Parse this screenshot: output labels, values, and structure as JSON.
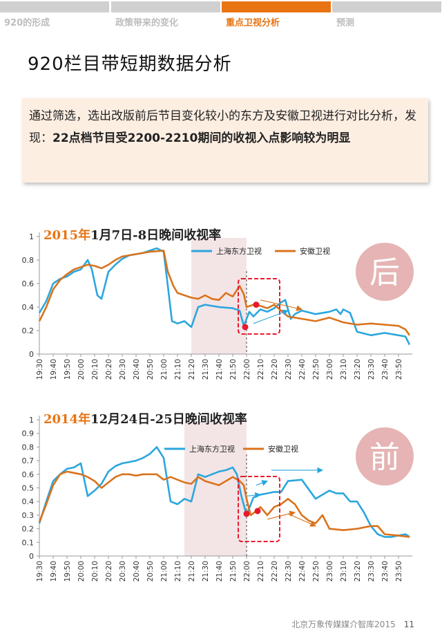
{
  "nav": {
    "tabs": [
      {
        "label": "920的形成",
        "active": false
      },
      {
        "label": "政策带来的变化",
        "active": false
      },
      {
        "label": "重点卫视分析",
        "active": true
      },
      {
        "label": "预测",
        "active": false
      }
    ]
  },
  "page_title": "920栏目带短期数据分析",
  "note": {
    "lead": "通过筛选，选出改版前后节目变化较小的东方及安徽卫视进行对比分析，发现：",
    "bold": "22点档节目受2200-2210期间的收视入点影响较为明显"
  },
  "footer": {
    "source": "北京万象传媒媒介智库2015",
    "page": "11"
  },
  "colors": {
    "shanghai": "#2aa6de",
    "anhui": "#d9731c",
    "highlight": "#e8192c",
    "shade": "#f3e4e6",
    "badge": "#e6b4b4",
    "title_accent": "#e87413"
  },
  "chart_data": [
    {
      "type": "line",
      "title_accent": "2015年",
      "title": "1月7日-8日晚间收视率",
      "badge": "后",
      "ylim": [
        0,
        1
      ],
      "yticks": [
        "0",
        "0.2",
        "0.4",
        "0.6",
        "0.8",
        "1"
      ],
      "xticks": [
        "19:30",
        "19:40",
        "19:50",
        "20:00",
        "20:10",
        "20:20",
        "20:30",
        "20:40",
        "20:50",
        "21:00",
        "21:10",
        "21:20",
        "21:30",
        "21:40",
        "21:50",
        "22:00",
        "22:10",
        "22:20",
        "22:30",
        "22:40",
        "22:50",
        "23:00",
        "23:10",
        "23:20",
        "23:30",
        "23:40",
        "23:50"
      ],
      "shaded_range": [
        "21:20",
        "22:00"
      ],
      "series": [
        {
          "name": "上海东方卫视",
          "x": [
            "19:30",
            "19:35",
            "19:40",
            "19:45",
            "19:50",
            "19:55",
            "20:00",
            "20:05",
            "20:08",
            "20:12",
            "20:15",
            "20:20",
            "20:25",
            "20:30",
            "20:35",
            "20:40",
            "20:45",
            "20:50",
            "20:55",
            "21:00",
            "21:03",
            "21:06",
            "21:10",
            "21:15",
            "21:20",
            "21:25",
            "21:30",
            "21:40",
            "21:50",
            "21:55",
            "21:58",
            "22:02",
            "22:05",
            "22:10",
            "22:15",
            "22:20",
            "22:25",
            "22:28",
            "22:32",
            "22:35",
            "22:40",
            "22:50",
            "23:00",
            "23:05",
            "23:08",
            "23:10",
            "23:15",
            "23:20",
            "23:30",
            "23:40",
            "23:50",
            "23:55",
            "23:58"
          ],
          "values": [
            0.35,
            0.45,
            0.6,
            0.64,
            0.66,
            0.7,
            0.72,
            0.8,
            0.72,
            0.5,
            0.47,
            0.7,
            0.76,
            0.81,
            0.84,
            0.85,
            0.86,
            0.88,
            0.9,
            0.87,
            0.58,
            0.28,
            0.26,
            0.28,
            0.23,
            0.4,
            0.42,
            0.4,
            0.39,
            0.37,
            0.24,
            0.36,
            0.32,
            0.38,
            0.36,
            0.39,
            0.44,
            0.46,
            0.3,
            0.34,
            0.37,
            0.34,
            0.36,
            0.38,
            0.34,
            0.38,
            0.35,
            0.19,
            0.16,
            0.18,
            0.16,
            0.15,
            0.08
          ]
        },
        {
          "name": "安徽卫视",
          "x": [
            "19:30",
            "19:35",
            "19:40",
            "19:45",
            "19:50",
            "19:55",
            "20:00",
            "20:05",
            "20:10",
            "20:15",
            "20:20",
            "20:25",
            "20:30",
            "20:40",
            "20:50",
            "21:00",
            "21:03",
            "21:07",
            "21:10",
            "21:15",
            "21:20",
            "21:25",
            "21:30",
            "21:35",
            "21:40",
            "21:45",
            "21:50",
            "21:55",
            "21:58",
            "22:00",
            "22:05",
            "22:10",
            "22:15",
            "22:20",
            "22:30",
            "22:40",
            "22:50",
            "23:00",
            "23:10",
            "23:20",
            "23:30",
            "23:40",
            "23:50",
            "23:55",
            "23:58"
          ],
          "values": [
            0.28,
            0.4,
            0.55,
            0.63,
            0.68,
            0.72,
            0.74,
            0.76,
            0.75,
            0.73,
            0.76,
            0.8,
            0.83,
            0.85,
            0.87,
            0.88,
            0.7,
            0.58,
            0.52,
            0.5,
            0.48,
            0.47,
            0.5,
            0.47,
            0.46,
            0.52,
            0.49,
            0.58,
            0.51,
            0.4,
            0.42,
            0.41,
            0.39,
            0.42,
            0.32,
            0.3,
            0.28,
            0.31,
            0.27,
            0.25,
            0.26,
            0.25,
            0.24,
            0.21,
            0.16
          ]
        }
      ],
      "markers": [
        {
          "time": "21:59",
          "value": 0.23
        },
        {
          "time": "22:07",
          "value": 0.42
        }
      ]
    },
    {
      "type": "line",
      "title_accent": "2014年",
      "title": "12月24日-25日晚间收视率",
      "badge": "前",
      "ylim": [
        0,
        1
      ],
      "yticks": [
        "0",
        "0.1",
        "0.2",
        "0.3",
        "0.4",
        "0.5",
        "0.6",
        "0.7",
        "0.8",
        "0.9",
        "1"
      ],
      "xticks": [
        "19:30",
        "19:40",
        "19:50",
        "20:00",
        "20:10",
        "20:20",
        "20:30",
        "20:40",
        "20:50",
        "21:00",
        "21:10",
        "21:20",
        "21:30",
        "21:40",
        "21:50",
        "22:00",
        "22:10",
        "22:20",
        "22:30",
        "22:40",
        "22:50",
        "23:00",
        "23:10",
        "23:20",
        "23:30",
        "23:40",
        "23:50"
      ],
      "shaded_range": [
        "21:15",
        "22:00"
      ],
      "series": [
        {
          "name": "上海东方卫视",
          "x": [
            "19:30",
            "19:35",
            "19:40",
            "19:45",
            "19:50",
            "19:55",
            "20:00",
            "20:05",
            "20:10",
            "20:15",
            "20:20",
            "20:25",
            "20:30",
            "20:35",
            "20:40",
            "20:45",
            "20:50",
            "20:55",
            "21:00",
            "21:05",
            "21:10",
            "21:15",
            "21:20",
            "21:25",
            "21:30",
            "21:35",
            "21:40",
            "21:45",
            "21:50",
            "21:53",
            "21:56",
            "22:00",
            "22:05",
            "22:10",
            "22:15",
            "22:20",
            "22:25",
            "22:30",
            "22:40",
            "22:50",
            "23:00",
            "23:05",
            "23:10",
            "23:15",
            "23:20",
            "23:25",
            "23:30",
            "23:35",
            "23:40",
            "23:45",
            "23:50",
            "23:55",
            "23:58"
          ],
          "values": [
            0.24,
            0.4,
            0.55,
            0.6,
            0.64,
            0.65,
            0.68,
            0.44,
            0.48,
            0.53,
            0.62,
            0.66,
            0.68,
            0.69,
            0.7,
            0.72,
            0.75,
            0.8,
            0.72,
            0.4,
            0.38,
            0.42,
            0.4,
            0.6,
            0.58,
            0.6,
            0.62,
            0.63,
            0.65,
            0.6,
            0.45,
            0.3,
            0.43,
            0.45,
            0.46,
            0.47,
            0.47,
            0.55,
            0.56,
            0.42,
            0.48,
            0.46,
            0.46,
            0.4,
            0.4,
            0.32,
            0.22,
            0.16,
            0.14,
            0.14,
            0.15,
            0.16,
            0.14
          ]
        },
        {
          "name": "安徽卫视",
          "x": [
            "19:30",
            "19:35",
            "19:40",
            "19:45",
            "19:50",
            "19:55",
            "20:00",
            "20:05",
            "20:10",
            "20:15",
            "20:20",
            "20:25",
            "20:30",
            "20:35",
            "20:40",
            "20:45",
            "20:50",
            "20:55",
            "21:00",
            "21:05",
            "21:10",
            "21:15",
            "21:20",
            "21:25",
            "21:30",
            "21:40",
            "21:50",
            "21:55",
            "21:58",
            "22:00",
            "22:03",
            "22:07",
            "22:10",
            "22:15",
            "22:20",
            "22:25",
            "22:30",
            "22:35",
            "22:40",
            "22:45",
            "22:50",
            "22:55",
            "23:00",
            "23:10",
            "23:20",
            "23:30",
            "23:35",
            "23:40",
            "23:50",
            "23:58"
          ],
          "values": [
            0.25,
            0.38,
            0.52,
            0.6,
            0.62,
            0.61,
            0.6,
            0.58,
            0.55,
            0.5,
            0.54,
            0.58,
            0.6,
            0.6,
            0.59,
            0.6,
            0.6,
            0.6,
            0.56,
            0.58,
            0.56,
            0.54,
            0.53,
            0.58,
            0.55,
            0.52,
            0.58,
            0.55,
            0.52,
            0.42,
            0.3,
            0.33,
            0.36,
            0.3,
            0.36,
            0.38,
            0.42,
            0.38,
            0.3,
            0.26,
            0.24,
            0.3,
            0.2,
            0.19,
            0.2,
            0.22,
            0.22,
            0.16,
            0.15,
            0.14
          ]
        }
      ],
      "markers": [
        {
          "time": "22:00",
          "value": 0.31
        },
        {
          "time": "22:08",
          "value": 0.33
        }
      ]
    }
  ]
}
